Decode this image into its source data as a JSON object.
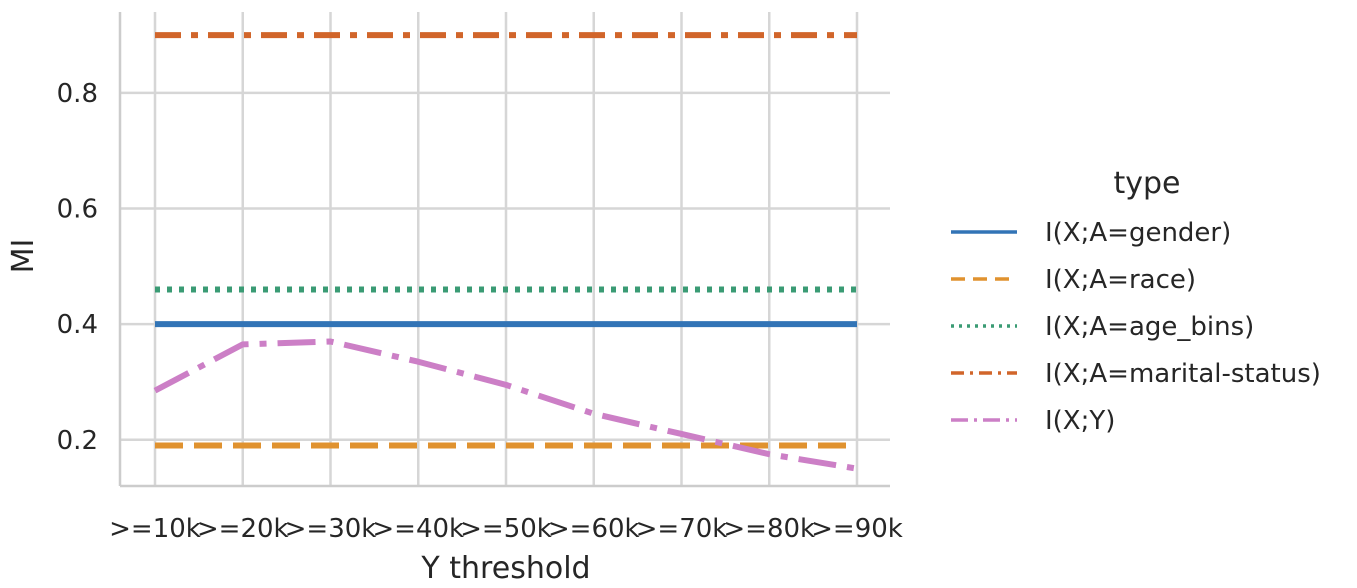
{
  "chart_data": {
    "type": "line",
    "xlabel": "Y threshold",
    "ylabel": "MI",
    "categories": [
      ">=10k",
      ">=20k",
      ">=30k",
      ">=40k",
      ">=50k",
      ">=60k",
      ">=70k",
      ">=80k",
      ">=90k"
    ],
    "ylim": [
      0.12,
      0.94
    ],
    "yticks": [
      0.2,
      0.4,
      0.6,
      0.8
    ],
    "ytick_labels": [
      "0.2",
      "0.4",
      "0.6",
      "0.8"
    ],
    "grid": true,
    "legend": {
      "title": "type",
      "placement": "right"
    },
    "series": [
      {
        "name": "I(X;A=gender)",
        "color": "#3274b6",
        "dash": "solid",
        "values": [
          0.4,
          0.4,
          0.4,
          0.4,
          0.4,
          0.4,
          0.4,
          0.4,
          0.4
        ]
      },
      {
        "name": "I(X;A=race)",
        "color": "#e0922f",
        "dash": "dashed",
        "values": [
          0.19,
          0.19,
          0.19,
          0.19,
          0.19,
          0.19,
          0.19,
          0.19,
          0.19
        ]
      },
      {
        "name": "I(X;A=age_bins)",
        "color": "#3a9b74",
        "dash": "dotted",
        "values": [
          0.46,
          0.46,
          0.46,
          0.46,
          0.46,
          0.46,
          0.46,
          0.46,
          0.46
        ]
      },
      {
        "name": "I(X;A=marital-status)",
        "color": "#d1652a",
        "dash": "dashdot",
        "values": [
          0.9,
          0.9,
          0.9,
          0.9,
          0.9,
          0.9,
          0.9,
          0.9,
          0.9
        ]
      },
      {
        "name": "I(X;Y)",
        "color": "#cc7fc6",
        "dash": "dashdot2",
        "values": [
          0.285,
          0.365,
          0.37,
          0.335,
          0.295,
          0.245,
          0.21,
          0.175,
          0.15
        ]
      }
    ]
  }
}
